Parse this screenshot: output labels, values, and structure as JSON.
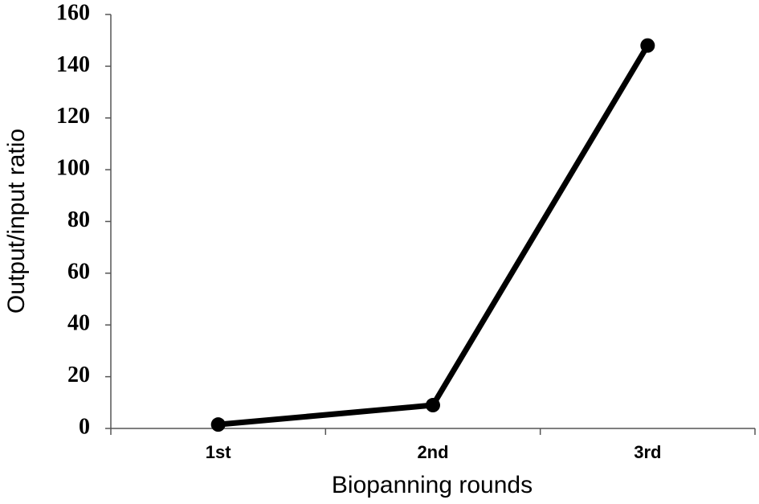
{
  "chart_data": {
    "type": "line",
    "categories": [
      "1st",
      "2nd",
      "3rd"
    ],
    "values": [
      1.5,
      9,
      148
    ],
    "color": "#000000",
    "xlabel": "Biopanning rounds",
    "ylabel": "Output/input ratio",
    "ylim": [
      0,
      160
    ],
    "yticks": [
      0,
      20,
      40,
      60,
      80,
      100,
      120,
      140,
      160
    ],
    "grid": false
  }
}
